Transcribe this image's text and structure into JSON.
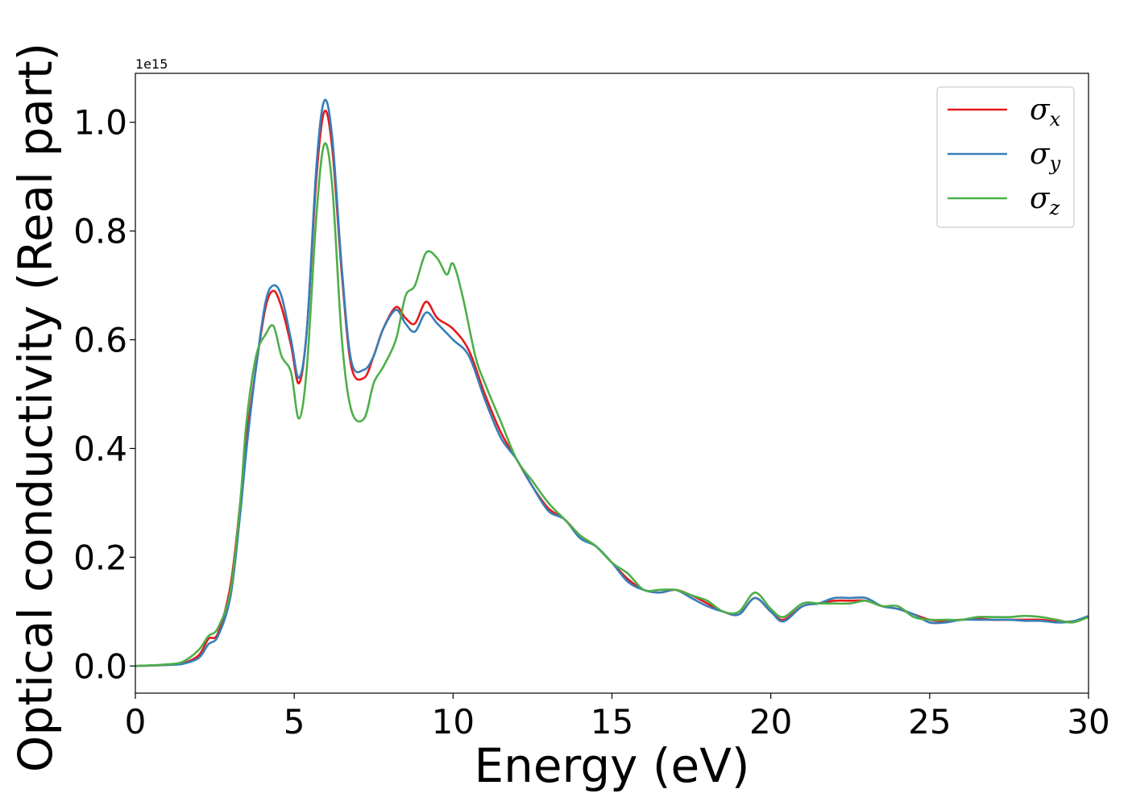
{
  "chart_data": {
    "type": "line",
    "title": "",
    "xlabel": "Energy (eV)",
    "ylabel": "Optical conductivity (Real part)",
    "y_offset_label": "1e15",
    "xlim": [
      0,
      30
    ],
    "ylim": [
      -0.05,
      1.09
    ],
    "x_ticks": [
      0,
      5,
      10,
      15,
      20,
      25,
      30
    ],
    "x_tick_labels": [
      "0",
      "5",
      "10",
      "15",
      "20",
      "25",
      "30"
    ],
    "y_ticks": [
      0.0,
      0.2,
      0.4,
      0.6,
      0.8,
      1.0
    ],
    "y_tick_labels": [
      "0.0",
      "0.2",
      "0.4",
      "0.6",
      "0.8",
      "1.0"
    ],
    "grid": false,
    "legend_position": "top-right",
    "series": [
      {
        "name": "σx",
        "symbol": "σ",
        "subscript": "x",
        "color": "#e41a1c",
        "points": [
          [
            0,
            0
          ],
          [
            1,
            0.002
          ],
          [
            1.5,
            0.005
          ],
          [
            2,
            0.02
          ],
          [
            2.3,
            0.05
          ],
          [
            2.6,
            0.06
          ],
          [
            3.0,
            0.15
          ],
          [
            3.3,
            0.3
          ],
          [
            3.5,
            0.42
          ],
          [
            3.8,
            0.55
          ],
          [
            4.1,
            0.66
          ],
          [
            4.35,
            0.69
          ],
          [
            4.6,
            0.66
          ],
          [
            4.9,
            0.59
          ],
          [
            5.15,
            0.52
          ],
          [
            5.4,
            0.62
          ],
          [
            5.7,
            0.9
          ],
          [
            5.95,
            1.02
          ],
          [
            6.2,
            0.95
          ],
          [
            6.5,
            0.72
          ],
          [
            6.8,
            0.55
          ],
          [
            7.2,
            0.53
          ],
          [
            7.5,
            0.57
          ],
          [
            7.8,
            0.62
          ],
          [
            8.2,
            0.66
          ],
          [
            8.5,
            0.64
          ],
          [
            8.8,
            0.63
          ],
          [
            9.15,
            0.67
          ],
          [
            9.5,
            0.64
          ],
          [
            10,
            0.62
          ],
          [
            10.5,
            0.58
          ],
          [
            11,
            0.5
          ],
          [
            11.5,
            0.43
          ],
          [
            12,
            0.38
          ],
          [
            12.5,
            0.33
          ],
          [
            13,
            0.29
          ],
          [
            13.5,
            0.27
          ],
          [
            14,
            0.24
          ],
          [
            14.5,
            0.22
          ],
          [
            15,
            0.19
          ],
          [
            15.5,
            0.16
          ],
          [
            16,
            0.14
          ],
          [
            16.5,
            0.135
          ],
          [
            17,
            0.14
          ],
          [
            17.5,
            0.13
          ],
          [
            18,
            0.115
          ],
          [
            18.5,
            0.1
          ],
          [
            19,
            0.095
          ],
          [
            19.5,
            0.125
          ],
          [
            20,
            0.1
          ],
          [
            20.4,
            0.085
          ],
          [
            21,
            0.11
          ],
          [
            21.5,
            0.115
          ],
          [
            22,
            0.12
          ],
          [
            22.5,
            0.12
          ],
          [
            23,
            0.12
          ],
          [
            23.5,
            0.11
          ],
          [
            24,
            0.105
          ],
          [
            24.5,
            0.095
          ],
          [
            25,
            0.085
          ],
          [
            25.5,
            0.082
          ],
          [
            26,
            0.085
          ],
          [
            26.5,
            0.087
          ],
          [
            27,
            0.085
          ],
          [
            27.5,
            0.085
          ],
          [
            28,
            0.085
          ],
          [
            28.5,
            0.085
          ],
          [
            29,
            0.082
          ],
          [
            29.5,
            0.082
          ],
          [
            30,
            0.09
          ]
        ]
      },
      {
        "name": "σy",
        "symbol": "σ",
        "subscript": "y",
        "color": "#377eb8",
        "points": [
          [
            0,
            0
          ],
          [
            1,
            0.002
          ],
          [
            1.5,
            0.004
          ],
          [
            2,
            0.015
          ],
          [
            2.3,
            0.04
          ],
          [
            2.6,
            0.055
          ],
          [
            3.0,
            0.13
          ],
          [
            3.3,
            0.28
          ],
          [
            3.5,
            0.4
          ],
          [
            3.8,
            0.55
          ],
          [
            4.1,
            0.67
          ],
          [
            4.35,
            0.7
          ],
          [
            4.6,
            0.68
          ],
          [
            4.9,
            0.6
          ],
          [
            5.15,
            0.53
          ],
          [
            5.4,
            0.62
          ],
          [
            5.7,
            0.92
          ],
          [
            5.95,
            1.04
          ],
          [
            6.2,
            0.97
          ],
          [
            6.5,
            0.73
          ],
          [
            6.8,
            0.56
          ],
          [
            7.2,
            0.545
          ],
          [
            7.5,
            0.57
          ],
          [
            7.8,
            0.62
          ],
          [
            8.2,
            0.655
          ],
          [
            8.5,
            0.63
          ],
          [
            8.8,
            0.615
          ],
          [
            9.15,
            0.65
          ],
          [
            9.5,
            0.63
          ],
          [
            10,
            0.6
          ],
          [
            10.5,
            0.57
          ],
          [
            11,
            0.49
          ],
          [
            11.5,
            0.42
          ],
          [
            12,
            0.38
          ],
          [
            12.5,
            0.33
          ],
          [
            13,
            0.285
          ],
          [
            13.5,
            0.27
          ],
          [
            14,
            0.235
          ],
          [
            14.5,
            0.22
          ],
          [
            15,
            0.19
          ],
          [
            15.5,
            0.155
          ],
          [
            16,
            0.14
          ],
          [
            16.5,
            0.135
          ],
          [
            17,
            0.14
          ],
          [
            17.5,
            0.125
          ],
          [
            18,
            0.11
          ],
          [
            18.5,
            0.1
          ],
          [
            19,
            0.095
          ],
          [
            19.5,
            0.125
          ],
          [
            20,
            0.1
          ],
          [
            20.4,
            0.082
          ],
          [
            21,
            0.11
          ],
          [
            21.5,
            0.115
          ],
          [
            22,
            0.125
          ],
          [
            22.5,
            0.125
          ],
          [
            23,
            0.125
          ],
          [
            23.5,
            0.11
          ],
          [
            24,
            0.105
          ],
          [
            24.5,
            0.095
          ],
          [
            25,
            0.08
          ],
          [
            25.5,
            0.08
          ],
          [
            26,
            0.085
          ],
          [
            26.5,
            0.085
          ],
          [
            27,
            0.085
          ],
          [
            27.5,
            0.085
          ],
          [
            28,
            0.083
          ],
          [
            28.5,
            0.083
          ],
          [
            29,
            0.08
          ],
          [
            29.5,
            0.082
          ],
          [
            30,
            0.092
          ]
        ]
      },
      {
        "name": "σz",
        "symbol": "σ",
        "subscript": "z",
        "color": "#4daf4a",
        "points": [
          [
            0,
            0
          ],
          [
            1,
            0.003
          ],
          [
            1.5,
            0.008
          ],
          [
            2,
            0.03
          ],
          [
            2.3,
            0.055
          ],
          [
            2.6,
            0.07
          ],
          [
            3.0,
            0.14
          ],
          [
            3.3,
            0.3
          ],
          [
            3.5,
            0.45
          ],
          [
            3.8,
            0.57
          ],
          [
            4.1,
            0.61
          ],
          [
            4.35,
            0.625
          ],
          [
            4.6,
            0.57
          ],
          [
            4.9,
            0.54
          ],
          [
            5.15,
            0.455
          ],
          [
            5.4,
            0.55
          ],
          [
            5.7,
            0.83
          ],
          [
            5.95,
            0.96
          ],
          [
            6.2,
            0.88
          ],
          [
            6.5,
            0.6
          ],
          [
            6.8,
            0.47
          ],
          [
            7.2,
            0.455
          ],
          [
            7.5,
            0.52
          ],
          [
            7.8,
            0.55
          ],
          [
            8.2,
            0.6
          ],
          [
            8.5,
            0.68
          ],
          [
            8.8,
            0.7
          ],
          [
            9.15,
            0.76
          ],
          [
            9.5,
            0.75
          ],
          [
            9.8,
            0.72
          ],
          [
            10,
            0.74
          ],
          [
            10.3,
            0.68
          ],
          [
            10.7,
            0.57
          ],
          [
            11,
            0.52
          ],
          [
            11.5,
            0.45
          ],
          [
            12,
            0.38
          ],
          [
            12.5,
            0.34
          ],
          [
            13,
            0.3
          ],
          [
            13.5,
            0.27
          ],
          [
            14,
            0.24
          ],
          [
            14.5,
            0.22
          ],
          [
            15,
            0.19
          ],
          [
            15.5,
            0.17
          ],
          [
            16,
            0.14
          ],
          [
            16.5,
            0.14
          ],
          [
            17,
            0.14
          ],
          [
            17.5,
            0.13
          ],
          [
            18,
            0.12
          ],
          [
            18.5,
            0.1
          ],
          [
            19,
            0.1
          ],
          [
            19.5,
            0.135
          ],
          [
            20,
            0.105
          ],
          [
            20.4,
            0.09
          ],
          [
            21,
            0.115
          ],
          [
            21.5,
            0.115
          ],
          [
            22,
            0.115
          ],
          [
            22.5,
            0.115
          ],
          [
            23,
            0.12
          ],
          [
            23.5,
            0.11
          ],
          [
            24,
            0.11
          ],
          [
            24.5,
            0.09
          ],
          [
            25,
            0.085
          ],
          [
            25.5,
            0.085
          ],
          [
            26,
            0.085
          ],
          [
            26.5,
            0.09
          ],
          [
            27,
            0.09
          ],
          [
            27.5,
            0.09
          ],
          [
            28,
            0.092
          ],
          [
            28.5,
            0.09
          ],
          [
            29,
            0.085
          ],
          [
            29.5,
            0.08
          ],
          [
            30,
            0.09
          ]
        ]
      }
    ]
  }
}
